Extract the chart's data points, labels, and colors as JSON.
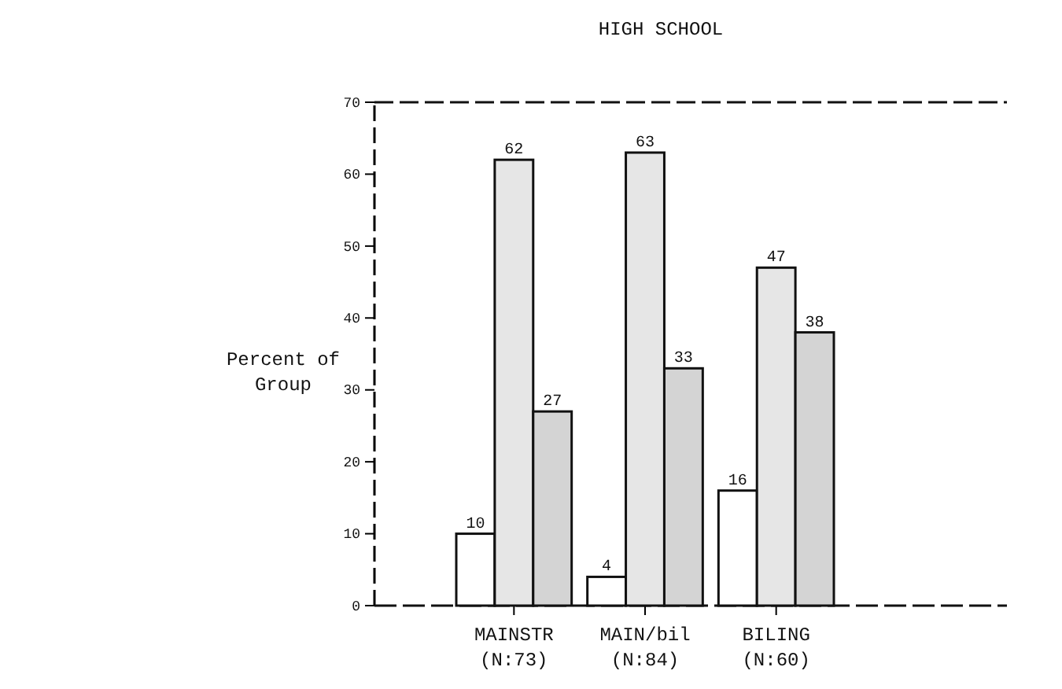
{
  "chart_data": {
    "type": "bar",
    "title": "HIGH SCHOOL",
    "ylabel": "Percent of\nGroup",
    "categories": [
      "MAINSTR\n(N:73)",
      "MAIN/bil\n(N:84)",
      "BILING\n(N:60)"
    ],
    "series": [
      {
        "color": "#ffffff",
        "values": [
          10,
          4,
          16
        ]
      },
      {
        "color": "#e6e6e6",
        "values": [
          62,
          63,
          47
        ]
      },
      {
        "color": "#d4d4d4",
        "values": [
          27,
          33,
          38
        ]
      }
    ],
    "ylim": [
      0,
      70
    ],
    "yticks": [
      0,
      10,
      20,
      30,
      40,
      50,
      60,
      70
    ],
    "data_labels": true,
    "grid": false
  }
}
